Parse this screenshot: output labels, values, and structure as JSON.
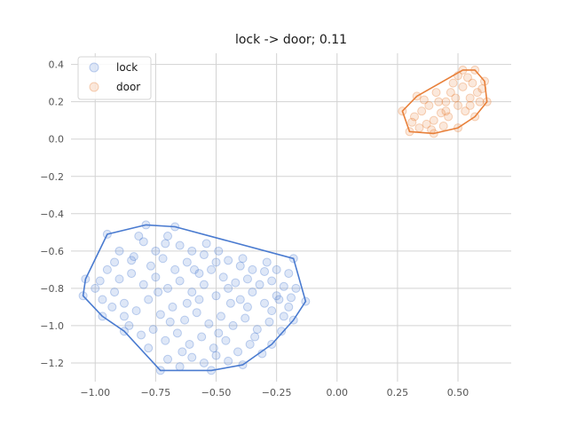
{
  "chart_data": {
    "type": "scatter",
    "title": "lock -> door; 0.11",
    "xlabel": "",
    "ylabel": "",
    "xlim": [
      -1.1,
      0.72
    ],
    "ylim": [
      -1.3,
      0.46
    ],
    "grid": true,
    "legend_position": "top-left",
    "x_ticks": [
      -1.0,
      -0.75,
      -0.5,
      -0.25,
      0.0,
      0.25,
      0.5
    ],
    "x_tick_labels": [
      "−1.00",
      "−0.75",
      "−0.50",
      "−0.25",
      "0.00",
      "0.25",
      "0.50"
    ],
    "y_ticks": [
      0.4,
      0.2,
      0.0,
      -0.2,
      -0.4,
      -0.6,
      -0.8,
      -1.0,
      -1.2
    ],
    "y_tick_labels": [
      "0.4",
      "0.2",
      "0.0",
      "−0.2",
      "−0.4",
      "−0.6",
      "−0.8",
      "−1.0",
      "−1.2"
    ],
    "series": [
      {
        "name": "lock",
        "color": "#4a7bd0",
        "hull": [
          [
            -0.73,
            -1.24
          ],
          [
            -0.52,
            -1.24
          ],
          [
            -0.39,
            -1.21
          ],
          [
            -0.27,
            -1.1
          ],
          [
            -0.18,
            -0.97
          ],
          [
            -0.13,
            -0.87
          ],
          [
            -0.18,
            -0.64
          ],
          [
            -0.67,
            -0.47
          ],
          [
            -0.79,
            -0.46
          ],
          [
            -0.95,
            -0.51
          ],
          [
            -1.04,
            -0.75
          ],
          [
            -1.05,
            -0.84
          ],
          [
            -0.97,
            -0.95
          ],
          [
            -0.88,
            -1.03
          ]
        ],
        "points": [
          [
            -0.73,
            -1.24
          ],
          [
            -0.52,
            -1.24
          ],
          [
            -0.39,
            -1.21
          ],
          [
            -0.27,
            -1.1
          ],
          [
            -0.18,
            -0.97
          ],
          [
            -0.13,
            -0.87
          ],
          [
            -0.18,
            -0.64
          ],
          [
            -0.67,
            -0.47
          ],
          [
            -0.79,
            -0.46
          ],
          [
            -0.95,
            -0.51
          ],
          [
            -1.04,
            -0.75
          ],
          [
            -1.05,
            -0.84
          ],
          [
            -0.97,
            -0.95
          ],
          [
            -0.88,
            -1.03
          ],
          [
            -0.9,
            -0.6
          ],
          [
            -0.85,
            -0.65
          ],
          [
            -0.8,
            -0.55
          ],
          [
            -0.75,
            -0.6
          ],
          [
            -0.7,
            -0.52
          ],
          [
            -0.65,
            -0.57
          ],
          [
            -0.6,
            -0.6
          ],
          [
            -0.55,
            -0.62
          ],
          [
            -0.5,
            -0.66
          ],
          [
            -0.45,
            -0.65
          ],
          [
            -0.4,
            -0.68
          ],
          [
            -0.35,
            -0.7
          ],
          [
            -0.3,
            -0.71
          ],
          [
            -0.25,
            -0.7
          ],
          [
            -0.2,
            -0.72
          ],
          [
            -0.95,
            -0.7
          ],
          [
            -0.9,
            -0.75
          ],
          [
            -0.85,
            -0.72
          ],
          [
            -0.8,
            -0.78
          ],
          [
            -0.75,
            -0.74
          ],
          [
            -0.7,
            -0.8
          ],
          [
            -0.65,
            -0.76
          ],
          [
            -0.6,
            -0.82
          ],
          [
            -0.55,
            -0.78
          ],
          [
            -0.5,
            -0.84
          ],
          [
            -0.45,
            -0.8
          ],
          [
            -0.4,
            -0.86
          ],
          [
            -0.35,
            -0.82
          ],
          [
            -0.3,
            -0.88
          ],
          [
            -0.25,
            -0.84
          ],
          [
            -0.2,
            -0.9
          ],
          [
            -0.17,
            -0.8
          ],
          [
            -1.0,
            -0.8
          ],
          [
            -0.97,
            -0.86
          ],
          [
            -0.92,
            -0.82
          ],
          [
            -0.88,
            -0.88
          ],
          [
            -0.83,
            -0.92
          ],
          [
            -0.78,
            -0.86
          ],
          [
            -0.73,
            -0.94
          ],
          [
            -0.68,
            -0.9
          ],
          [
            -0.63,
            -0.97
          ],
          [
            -0.58,
            -0.93
          ],
          [
            -0.53,
            -0.99
          ],
          [
            -0.48,
            -0.95
          ],
          [
            -0.43,
            -1.0
          ],
          [
            -0.38,
            -0.96
          ],
          [
            -0.33,
            -1.02
          ],
          [
            -0.28,
            -0.98
          ],
          [
            -0.23,
            -1.03
          ],
          [
            -0.86,
            -1.0
          ],
          [
            -0.81,
            -1.05
          ],
          [
            -0.76,
            -1.02
          ],
          [
            -0.71,
            -1.08
          ],
          [
            -0.66,
            -1.04
          ],
          [
            -0.61,
            -1.1
          ],
          [
            -0.56,
            -1.06
          ],
          [
            -0.51,
            -1.12
          ],
          [
            -0.46,
            -1.08
          ],
          [
            -0.41,
            -1.14
          ],
          [
            -0.36,
            -1.1
          ],
          [
            -0.31,
            -1.15
          ],
          [
            -0.7,
            -1.18
          ],
          [
            -0.65,
            -1.22
          ],
          [
            -0.6,
            -1.17
          ],
          [
            -0.55,
            -1.2
          ],
          [
            -0.5,
            -1.16
          ],
          [
            -0.45,
            -1.19
          ],
          [
            -0.78,
            -1.12
          ],
          [
            -0.84,
            -0.63
          ],
          [
            -0.77,
            -0.68
          ],
          [
            -0.72,
            -0.64
          ],
          [
            -0.67,
            -0.7
          ],
          [
            -0.62,
            -0.66
          ],
          [
            -0.57,
            -0.72
          ],
          [
            -0.52,
            -0.7
          ],
          [
            -0.47,
            -0.74
          ],
          [
            -0.42,
            -0.77
          ],
          [
            -0.37,
            -0.75
          ],
          [
            -0.32,
            -0.78
          ],
          [
            -0.27,
            -0.76
          ],
          [
            -0.22,
            -0.79
          ],
          [
            -0.93,
            -0.9
          ],
          [
            -0.88,
            -0.95
          ],
          [
            -0.62,
            -0.88
          ],
          [
            -0.57,
            -0.86
          ],
          [
            -0.37,
            -0.9
          ],
          [
            -0.27,
            -0.92
          ],
          [
            -0.22,
            -0.95
          ],
          [
            -0.74,
            -0.82
          ],
          [
            -0.69,
            -0.98
          ],
          [
            -0.64,
            -1.14
          ],
          [
            -0.49,
            -1.04
          ],
          [
            -0.34,
            -1.06
          ],
          [
            -0.59,
            -0.7
          ],
          [
            -0.44,
            -0.88
          ],
          [
            -0.82,
            -0.52
          ],
          [
            -0.71,
            -0.56
          ],
          [
            -0.92,
            -0.66
          ],
          [
            -0.98,
            -0.76
          ],
          [
            -0.29,
            -0.66
          ],
          [
            -0.24,
            -0.86
          ],
          [
            -0.54,
            -0.56
          ],
          [
            -0.49,
            -0.6
          ],
          [
            -0.39,
            -0.64
          ],
          [
            -0.19,
            -0.85
          ]
        ]
      },
      {
        "name": "door",
        "color": "#e8803a",
        "hull": [
          [
            0.52,
            0.37
          ],
          [
            0.57,
            0.37
          ],
          [
            0.61,
            0.31
          ],
          [
            0.62,
            0.2
          ],
          [
            0.57,
            0.12
          ],
          [
            0.5,
            0.06
          ],
          [
            0.4,
            0.03
          ],
          [
            0.3,
            0.04
          ],
          [
            0.27,
            0.15
          ],
          [
            0.33,
            0.23
          ]
        ],
        "points": [
          [
            0.52,
            0.37
          ],
          [
            0.57,
            0.37
          ],
          [
            0.61,
            0.31
          ],
          [
            0.62,
            0.2
          ],
          [
            0.57,
            0.12
          ],
          [
            0.5,
            0.06
          ],
          [
            0.4,
            0.03
          ],
          [
            0.3,
            0.04
          ],
          [
            0.27,
            0.15
          ],
          [
            0.33,
            0.23
          ],
          [
            0.35,
            0.15
          ],
          [
            0.38,
            0.18
          ],
          [
            0.4,
            0.1
          ],
          [
            0.42,
            0.2
          ],
          [
            0.45,
            0.15
          ],
          [
            0.47,
            0.25
          ],
          [
            0.5,
            0.18
          ],
          [
            0.52,
            0.28
          ],
          [
            0.55,
            0.22
          ],
          [
            0.56,
            0.3
          ],
          [
            0.58,
            0.25
          ],
          [
            0.6,
            0.27
          ],
          [
            0.48,
            0.3
          ],
          [
            0.44,
            0.07
          ],
          [
            0.37,
            0.08
          ],
          [
            0.32,
            0.12
          ],
          [
            0.46,
            0.12
          ],
          [
            0.53,
            0.15
          ],
          [
            0.41,
            0.25
          ],
          [
            0.36,
            0.21
          ],
          [
            0.5,
            0.34
          ],
          [
            0.54,
            0.33
          ],
          [
            0.43,
            0.14
          ],
          [
            0.39,
            0.05
          ],
          [
            0.31,
            0.09
          ],
          [
            0.49,
            0.22
          ],
          [
            0.59,
            0.2
          ],
          [
            0.34,
            0.06
          ],
          [
            0.45,
            0.2
          ],
          [
            0.55,
            0.18
          ]
        ]
      }
    ]
  }
}
